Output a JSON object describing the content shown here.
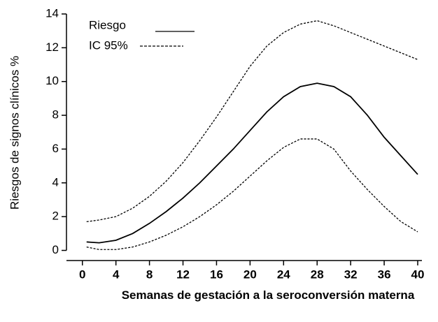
{
  "chart_data": {
    "type": "line",
    "y_label": "Riesgos de signos clínicos %",
    "x_label": "Semanas de gestación a la seroconversión materna",
    "x": [
      0.5,
      2,
      4,
      6,
      8,
      10,
      12,
      14,
      16,
      18,
      20,
      22,
      24,
      26,
      28,
      30,
      32,
      34,
      36,
      38,
      40
    ],
    "series": [
      {
        "name": "Riesgo",
        "color": "#000000",
        "style": "solid",
        "values": [
          0.5,
          0.45,
          0.6,
          1.0,
          1.6,
          2.3,
          3.1,
          4.0,
          5.0,
          6.0,
          7.1,
          8.2,
          9.1,
          9.7,
          9.9,
          9.7,
          9.1,
          8.0,
          6.7,
          5.6,
          4.5
        ]
      },
      {
        "name": "IC 95%",
        "color": "#000000",
        "style": "dashed",
        "values": [
          0.2,
          0.05,
          0.05,
          0.2,
          0.5,
          0.9,
          1.4,
          2.0,
          2.7,
          3.5,
          4.4,
          5.3,
          6.1,
          6.6,
          6.6,
          6.0,
          4.7,
          3.6,
          2.6,
          1.7,
          1.1
        ],
        "upper": [
          1.7,
          1.8,
          2.0,
          2.5,
          3.2,
          4.1,
          5.2,
          6.5,
          7.9,
          9.4,
          10.9,
          12.1,
          12.9,
          13.4,
          13.6,
          13.3,
          12.9,
          12.5,
          12.1,
          11.7,
          11.3
        ]
      }
    ],
    "xlim": [
      -1.9,
      40.5
    ],
    "xticks": [
      0,
      4,
      8,
      12,
      16,
      20,
      24,
      28,
      32,
      36,
      40
    ],
    "ylim": [
      -0.6,
      14
    ],
    "yticks": [
      0,
      2,
      4,
      6,
      8,
      10,
      12,
      14
    ],
    "legend": "top-left",
    "grid": false
  }
}
